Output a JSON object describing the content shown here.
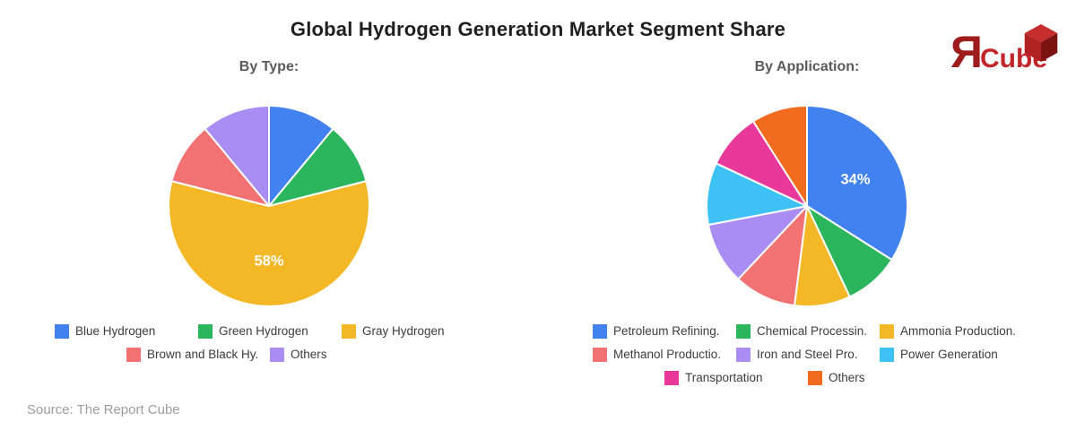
{
  "title": "Global Hydrogen Generation Market Segment Share",
  "source": "Source: The Report Cube",
  "logo": {
    "mark": "Я",
    "name": "Cube"
  },
  "chart_data": [
    {
      "type": "pie",
      "title": "By Type:",
      "unit": "%",
      "legend_position": "bottom",
      "start_angle_deg": 0,
      "direction": "clockwise",
      "slices": [
        {
          "label": "Blue Hydrogen",
          "value": 11,
          "color": "#4182F0"
        },
        {
          "label": "Green Hydrogen",
          "value": 10,
          "color": "#2BB55C"
        },
        {
          "label": "Gray Hydrogen",
          "value": 58,
          "color": "#F4B826",
          "pct_label": "58%"
        },
        {
          "label": "Brown and Black Hy.",
          "value": 10,
          "color": "#F27173"
        },
        {
          "label": "Others",
          "value": 11,
          "color": "#AA8DF3"
        }
      ]
    },
    {
      "type": "pie",
      "title": "By Application:",
      "unit": "%",
      "legend_position": "bottom",
      "start_angle_deg": 0,
      "direction": "clockwise",
      "slices": [
        {
          "label": "Petroleum Refining.",
          "value": 34,
          "color": "#4182F0",
          "pct_label": "34%"
        },
        {
          "label": "Chemical Processin.",
          "value": 9,
          "color": "#2BB55C"
        },
        {
          "label": "Ammonia Production.",
          "value": 9,
          "color": "#F4B826"
        },
        {
          "label": "Methanol Productio.",
          "value": 10,
          "color": "#F27173"
        },
        {
          "label": "Iron and Steel Pro.",
          "value": 10,
          "color": "#AA8DF3"
        },
        {
          "label": "Power Generation",
          "value": 10,
          "color": "#3EC2F5"
        },
        {
          "label": "Transportation",
          "value": 9,
          "color": "#E8399B"
        },
        {
          "label": "Others",
          "value": 9,
          "color": "#F26B1E"
        }
      ]
    }
  ]
}
